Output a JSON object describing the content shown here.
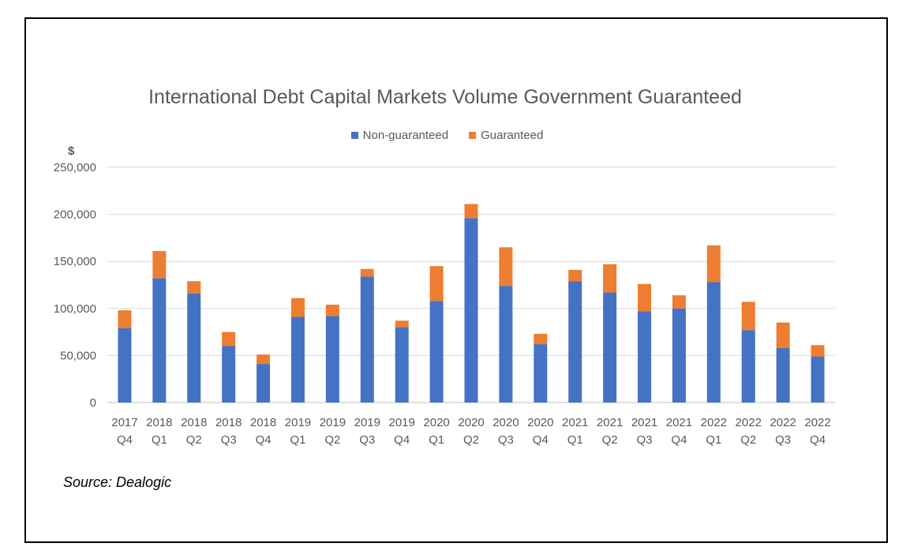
{
  "chart_data": {
    "type": "bar",
    "stacked": true,
    "title": "International Debt Capital Markets Volume Government Guaranteed",
    "ylabel": "$",
    "xlabel": "",
    "ylim": [
      0,
      250000
    ],
    "yticks": [
      "0",
      "50,000",
      "100,000",
      "150,000",
      "200,000",
      "250,000"
    ],
    "ytick_values": [
      0,
      50000,
      100000,
      150000,
      200000,
      250000
    ],
    "grid": true,
    "legend_position": "top",
    "categories": [
      [
        "2017",
        "Q4"
      ],
      [
        "2018",
        "Q1"
      ],
      [
        "2018",
        "Q2"
      ],
      [
        "2018",
        "Q3"
      ],
      [
        "2018",
        "Q4"
      ],
      [
        "2019",
        "Q1"
      ],
      [
        "2019",
        "Q2"
      ],
      [
        "2019",
        "Q3"
      ],
      [
        "2019",
        "Q4"
      ],
      [
        "2020",
        "Q1"
      ],
      [
        "2020",
        "Q2"
      ],
      [
        "2020",
        "Q3"
      ],
      [
        "2020",
        "Q4"
      ],
      [
        "2021",
        "Q1"
      ],
      [
        "2021",
        "Q2"
      ],
      [
        "2021",
        "Q3"
      ],
      [
        "2021",
        "Q4"
      ],
      [
        "2022",
        "Q1"
      ],
      [
        "2022",
        "Q2"
      ],
      [
        "2022",
        "Q3"
      ],
      [
        "2022",
        "Q4"
      ]
    ],
    "series": [
      {
        "name": "Non-guaranteed",
        "color": "#4472C4",
        "values": [
          79000,
          132000,
          116000,
          60000,
          41000,
          91000,
          92000,
          134000,
          80000,
          108000,
          196000,
          124000,
          62000,
          129000,
          117000,
          97000,
          100000,
          128000,
          77000,
          58000,
          49000
        ]
      },
      {
        "name": "Guaranteed",
        "color": "#ED7D31",
        "values": [
          19000,
          29000,
          13000,
          15000,
          10000,
          20000,
          12000,
          8000,
          7000,
          37000,
          15000,
          41000,
          11000,
          12000,
          30000,
          29000,
          14000,
          39000,
          30000,
          27000,
          12000
        ]
      }
    ]
  },
  "source": "Source: Dealogic"
}
